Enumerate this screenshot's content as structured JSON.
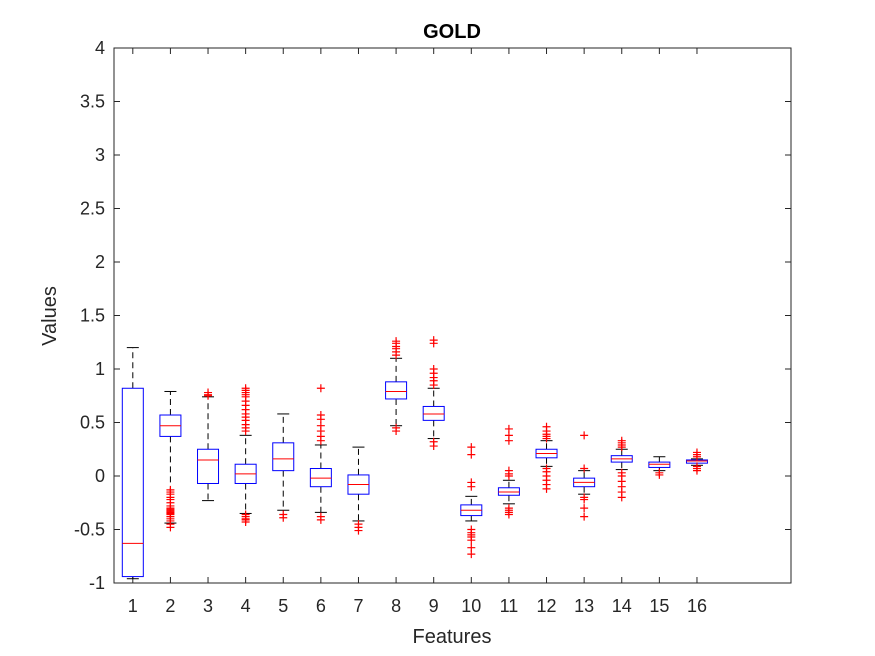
{
  "chart_data": {
    "type": "box",
    "title": "GOLD",
    "xlabel": "Features",
    "ylabel": "Values",
    "ylim": [
      -1,
      4
    ],
    "yticks": [
      -1,
      -0.5,
      0,
      0.5,
      1,
      1.5,
      2,
      2.5,
      3,
      3.5,
      4
    ],
    "ytick_labels": [
      "-1",
      "-0.5",
      "0",
      "0.5",
      "1",
      "1.5",
      "2",
      "2.5",
      "3",
      "3.5",
      "4"
    ],
    "xlim": [
      0.5,
      18.5
    ],
    "categories": [
      "1",
      "2",
      "3",
      "4",
      "5",
      "6",
      "7",
      "8",
      "9",
      "10",
      "11",
      "12",
      "13",
      "14",
      "15",
      "16"
    ],
    "grid": false,
    "colors": {
      "box": "#0000ff",
      "median": "#ff0000",
      "whisker": "#000000",
      "outlier": "#ff0000",
      "axis": "#262626"
    },
    "boxes": [
      {
        "label": "1",
        "whisker_low": -0.96,
        "q1": -0.94,
        "median": -0.63,
        "q3": 0.82,
        "whisker_high": 1.2,
        "outliers": []
      },
      {
        "label": "2",
        "whisker_low": -0.44,
        "q1": 0.37,
        "median": 0.47,
        "q3": 0.57,
        "whisker_high": 0.79,
        "outliers": [
          -0.48,
          -0.45,
          -0.42,
          -0.4,
          -0.38,
          -0.36,
          -0.35,
          -0.34,
          -0.33,
          -0.32,
          -0.31,
          -0.3,
          -0.28,
          -0.25,
          -0.22,
          -0.2,
          -0.17,
          -0.15,
          -0.13
        ]
      },
      {
        "label": "3",
        "whisker_low": -0.23,
        "q1": -0.07,
        "median": 0.15,
        "q3": 0.25,
        "whisker_high": 0.74,
        "outliers": [
          0.75,
          0.76,
          0.78
        ]
      },
      {
        "label": "4",
        "whisker_low": -0.35,
        "q1": -0.07,
        "median": 0.02,
        "q3": 0.11,
        "whisker_high": 0.38,
        "outliers": [
          -0.43,
          -0.41,
          -0.4,
          -0.38,
          -0.36,
          0.42,
          0.45,
          0.48,
          0.52,
          0.55,
          0.58,
          0.62,
          0.66,
          0.7,
          0.74,
          0.76,
          0.78,
          0.8,
          0.82
        ]
      },
      {
        "label": "5",
        "whisker_low": -0.32,
        "q1": 0.05,
        "median": 0.16,
        "q3": 0.31,
        "whisker_high": 0.58,
        "outliers": [
          -0.39,
          -0.36
        ]
      },
      {
        "label": "6",
        "whisker_low": -0.34,
        "q1": -0.1,
        "median": -0.02,
        "q3": 0.07,
        "whisker_high": 0.29,
        "outliers": [
          -0.41,
          -0.38,
          0.33,
          0.37,
          0.42,
          0.47,
          0.53,
          0.57,
          0.82
        ]
      },
      {
        "label": "7",
        "whisker_low": -0.42,
        "q1": -0.17,
        "median": -0.08,
        "q3": 0.01,
        "whisker_high": 0.27,
        "outliers": [
          -0.51,
          -0.48,
          -0.45
        ]
      },
      {
        "label": "8",
        "whisker_low": 0.47,
        "q1": 0.72,
        "median": 0.79,
        "q3": 0.88,
        "whisker_high": 1.1,
        "outliers": [
          0.42,
          0.45,
          1.13,
          1.16,
          1.19,
          1.21,
          1.24,
          1.26
        ]
      },
      {
        "label": "9",
        "whisker_low": 0.35,
        "q1": 0.52,
        "median": 0.58,
        "q3": 0.65,
        "whisker_high": 0.82,
        "outliers": [
          0.28,
          0.32,
          0.85,
          0.89,
          0.92,
          0.96,
          1.0,
          1.24,
          1.27
        ]
      },
      {
        "label": "10",
        "whisker_low": -0.42,
        "q1": -0.37,
        "median": -0.32,
        "q3": -0.27,
        "whisker_high": -0.19,
        "outliers": [
          -0.73,
          -0.67,
          -0.6,
          -0.57,
          -0.55,
          -0.53,
          -0.5,
          -0.1,
          -0.06,
          0.2,
          0.27
        ]
      },
      {
        "label": "11",
        "whisker_low": -0.26,
        "q1": -0.18,
        "median": -0.15,
        "q3": -0.11,
        "whisker_high": -0.04,
        "outliers": [
          -0.36,
          -0.34,
          -0.32,
          -0.3,
          0.0,
          0.02,
          0.05,
          0.33,
          0.38,
          0.44
        ]
      },
      {
        "label": "12",
        "whisker_low": 0.09,
        "q1": 0.17,
        "median": 0.21,
        "q3": 0.25,
        "whisker_high": 0.33,
        "outliers": [
          -0.12,
          -0.08,
          -0.04,
          0.0,
          0.04,
          0.07,
          0.35,
          0.37,
          0.39,
          0.42,
          0.46
        ]
      },
      {
        "label": "13",
        "whisker_low": -0.17,
        "q1": -0.1,
        "median": -0.06,
        "q3": -0.02,
        "whisker_high": 0.05,
        "outliers": [
          -0.38,
          -0.3,
          -0.22,
          -0.2,
          0.07,
          0.38
        ]
      },
      {
        "label": "14",
        "whisker_low": 0.06,
        "q1": 0.13,
        "median": 0.16,
        "q3": 0.19,
        "whisker_high": 0.25,
        "outliers": [
          -0.2,
          -0.15,
          -0.1,
          -0.05,
          0.0,
          0.03,
          0.27,
          0.29,
          0.31,
          0.33
        ]
      },
      {
        "label": "15",
        "whisker_low": 0.05,
        "q1": 0.08,
        "median": 0.11,
        "q3": 0.13,
        "whisker_high": 0.18,
        "outliers": [
          0.01,
          0.03
        ]
      },
      {
        "label": "16",
        "whisker_low": 0.1,
        "q1": 0.12,
        "median": 0.14,
        "q3": 0.15,
        "whisker_high": 0.16,
        "outliers": [
          0.05,
          0.07,
          0.09,
          0.18,
          0.2,
          0.22
        ]
      }
    ]
  }
}
